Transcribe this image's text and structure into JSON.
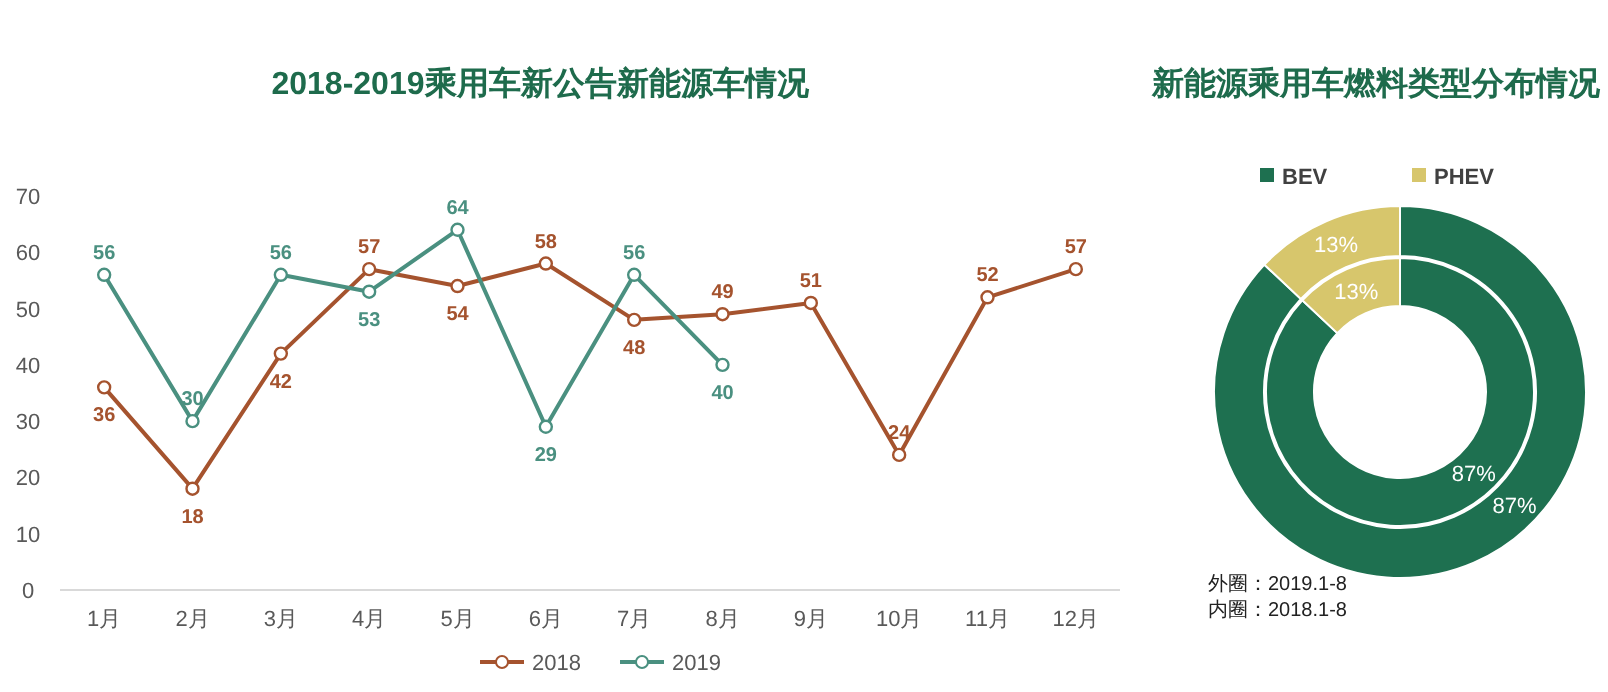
{
  "chart_data": [
    {
      "type": "line",
      "title": "2018-2019乘用车新公告新能源车情况",
      "categories": [
        "1月",
        "2月",
        "3月",
        "4月",
        "5月",
        "6月",
        "7月",
        "8月",
        "9月",
        "10月",
        "11月",
        "12月"
      ],
      "series": [
        {
          "name": "2018",
          "color": "#a5532e",
          "values": [
            36,
            18,
            42,
            57,
            54,
            58,
            48,
            49,
            51,
            24,
            52,
            57
          ]
        },
        {
          "name": "2019",
          "color": "#4a9080",
          "values": [
            56,
            30,
            56,
            53,
            64,
            29,
            56,
            40,
            null,
            null,
            null,
            null
          ]
        }
      ],
      "ylim": [
        0,
        70
      ],
      "yticks": [
        0,
        10,
        20,
        30,
        40,
        50,
        60,
        70
      ],
      "data_labels": true,
      "marker": "circle",
      "legend": "bottom",
      "grid": false
    },
    {
      "type": "donut",
      "title": "新能源乘用车燃料类型分布情况",
      "categories": [
        "BEV",
        "PHEV"
      ],
      "colors": [
        "#1e7050",
        "#d7c66c"
      ],
      "series": [
        {
          "values": [
            87,
            13
          ],
          "value_labels": [
            "87%",
            "13%"
          ]
        },
        {
          "values": [
            87,
            13
          ],
          "value_labels": [
            "87%",
            "13%"
          ]
        }
      ],
      "legend": "top",
      "annotations": [
        "外圈：2019.1-8",
        "内圈：2018.1-8"
      ]
    }
  ]
}
